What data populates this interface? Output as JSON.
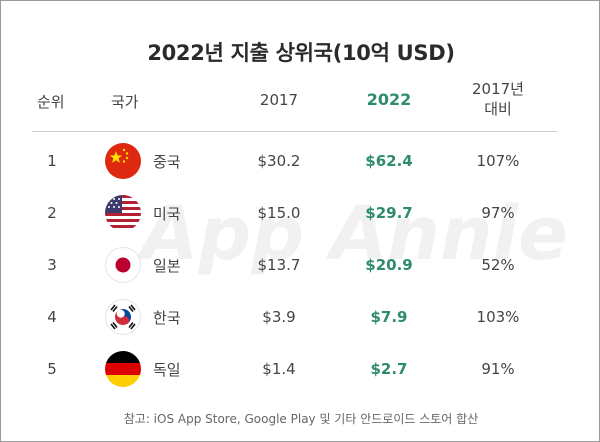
{
  "chart_data": {
    "type": "table",
    "title": "2022년 지출 상위국(10억 USD)",
    "columns": {
      "rank": "순위",
      "country": "국가",
      "y2017": "2017",
      "y2022": "2022",
      "vs2017": "2017년\n대비"
    },
    "rows": [
      {
        "rank": "1",
        "country": "중국",
        "flag": "china-flag",
        "v2017": "$30.2",
        "v2022": "$62.4",
        "vs": "107%"
      },
      {
        "rank": "2",
        "country": "미국",
        "flag": "usa-flag",
        "v2017": "$15.0",
        "v2022": "$29.7",
        "vs": "97%"
      },
      {
        "rank": "3",
        "country": "일본",
        "flag": "japan-flag",
        "v2017": "$13.7",
        "v2022": "$20.9",
        "vs": "52%"
      },
      {
        "rank": "4",
        "country": "한국",
        "flag": "korea-flag",
        "v2017": "$3.9",
        "v2022": "$7.9",
        "vs": "103%"
      },
      {
        "rank": "5",
        "country": "독일",
        "flag": "germany-flag",
        "v2017": "$1.4",
        "v2022": "$2.7",
        "vs": "91%"
      }
    ],
    "footnote": "참고: iOS App Store, Google Play 및 기타 안드로이드 스토어 합산",
    "watermark": "App Annie",
    "colors": {
      "highlight": "#2e8b6e",
      "text": "#444444",
      "rule": "#cfcfcf"
    }
  }
}
